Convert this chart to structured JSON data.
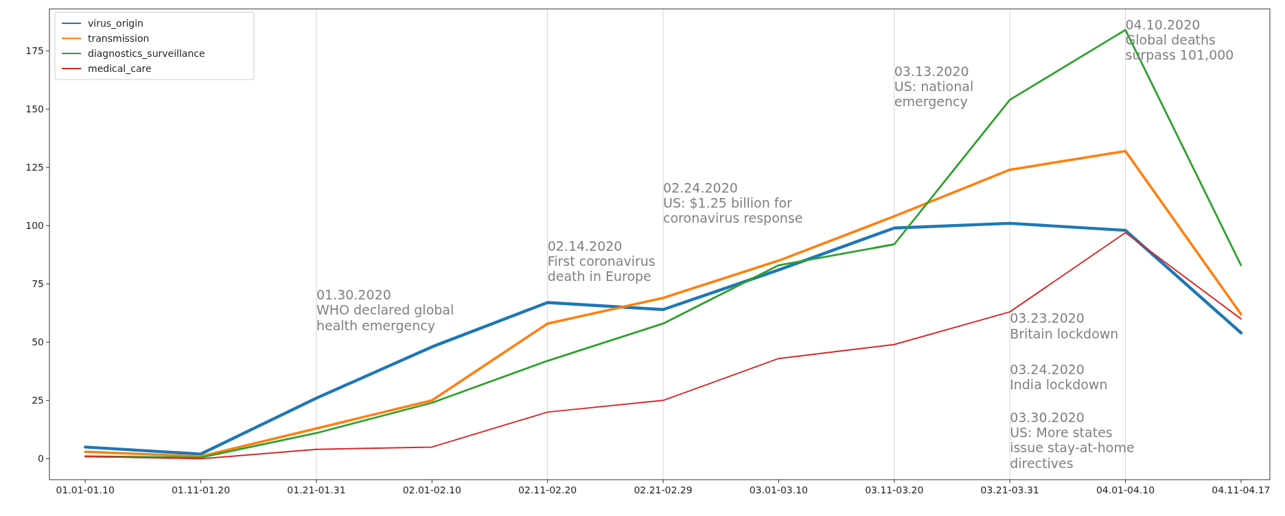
{
  "chart_data": {
    "type": "line",
    "categories": [
      "01.01-01.10",
      "01.11-01.20",
      "01.21-01.31",
      "02.01-02.10",
      "02.11-02.20",
      "02.21-02.29",
      "03.01-03.10",
      "03.11-03.20",
      "03.21-03.31",
      "04.01-04.10",
      "04.11-04.17"
    ],
    "series": [
      {
        "name": "virus_origin",
        "color": "#1f77b4",
        "values": [
          5,
          2,
          26,
          48,
          67,
          64,
          81,
          99,
          101,
          98,
          54
        ]
      },
      {
        "name": "transmission",
        "color": "#ff7f0e",
        "values": [
          3,
          1,
          13,
          25,
          58,
          69,
          85,
          104,
          124,
          132,
          62
        ]
      },
      {
        "name": "diagnostics_surveillance",
        "color": "#2ca02c",
        "values": [
          1,
          0.5,
          11,
          24,
          42,
          58,
          83,
          92,
          154,
          184,
          83
        ]
      },
      {
        "name": "medical_care",
        "color": "#d62728",
        "values": [
          1,
          0,
          4,
          5,
          20,
          25,
          43,
          49,
          63,
          97,
          60
        ]
      }
    ],
    "ylim": [
      -9,
      193
    ],
    "yticks": [
      0,
      25,
      50,
      75,
      100,
      125,
      150,
      175
    ],
    "legend": "top left",
    "grid": false,
    "ref_lines": [
      {
        "axis": "x",
        "value": "01.21-01.31",
        "color": "#d3d3d3"
      },
      {
        "axis": "x",
        "value": "02.11-02.20",
        "color": "#d3d3d3"
      },
      {
        "axis": "x",
        "value": "02.21-02.29",
        "color": "#d3d3d3"
      },
      {
        "axis": "x",
        "value": "03.11-03.20",
        "color": "#d3d3d3"
      },
      {
        "axis": "x",
        "value": "03.21-03.31",
        "color": "#d3d3d3"
      },
      {
        "axis": "x",
        "value": "04.01-04.10",
        "color": "#d3d3d3"
      }
    ],
    "annotations": [
      {
        "text": "01.30.2020\nWHO declared global\nhealth emergency",
        "x": "01.21-01.31",
        "y": 73
      },
      {
        "text": "02.14.2020\nFirst coronavirus\ndeath in Europe",
        "x": "02.11-02.20",
        "y": 94
      },
      {
        "text": "02.24.2020\nUS: $1.25 billion for\ncoronavirus response",
        "x": "02.21-02.29",
        "y": 119
      },
      {
        "text": "03.13.2020\nUS: national\nemergency",
        "x": "03.11-03.20",
        "y": 169
      },
      {
        "text": "04.10.2020\nGlobal deaths\nsurpass 101,000",
        "x": "04.01-04.10",
        "y": 189
      },
      {
        "text": "03.23.2020\nBritain lockdown",
        "x": "03.21-03.31",
        "y": 63
      },
      {
        "text": "03.24.2020\nIndia lockdown",
        "x": "03.21-03.31",
        "y": 41
      },
      {
        "text": "03.30.2020\nUS: More states\nissue stay-at-home\ndirectives",
        "x": "03.21-03.31",
        "y": 20.5
      }
    ]
  }
}
